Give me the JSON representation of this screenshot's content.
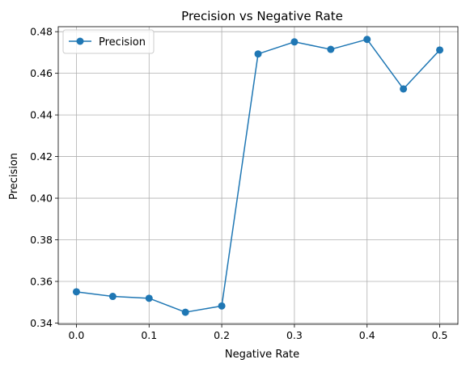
{
  "chart_data": {
    "type": "line",
    "title": "Precision vs Negative Rate",
    "xlabel": "Negative Rate",
    "ylabel": "Precision",
    "xlim": [
      -0.025,
      0.525
    ],
    "ylim": [
      0.3394,
      0.4824
    ],
    "xticks": [
      0.0,
      0.1,
      0.2,
      0.3,
      0.4,
      0.5
    ],
    "xtick_labels": [
      "0.0",
      "0.1",
      "0.2",
      "0.3",
      "0.4",
      "0.5"
    ],
    "yticks": [
      0.34,
      0.36,
      0.38,
      0.4,
      0.42,
      0.44,
      0.46,
      0.48
    ],
    "ytick_labels": [
      "0.34",
      "0.36",
      "0.38",
      "0.40",
      "0.42",
      "0.44",
      "0.46",
      "0.48"
    ],
    "grid": true,
    "legend_position": "top-left",
    "series": [
      {
        "name": "Precision",
        "color": "#1f77b4",
        "marker": "circle",
        "x": [
          0.0,
          0.05,
          0.1,
          0.15,
          0.2,
          0.25,
          0.3,
          0.35,
          0.4,
          0.45,
          0.5
        ],
        "y": [
          0.355,
          0.3528,
          0.3519,
          0.3452,
          0.3482,
          0.4693,
          0.4751,
          0.4715,
          0.4763,
          0.4525,
          0.4712
        ]
      }
    ]
  }
}
